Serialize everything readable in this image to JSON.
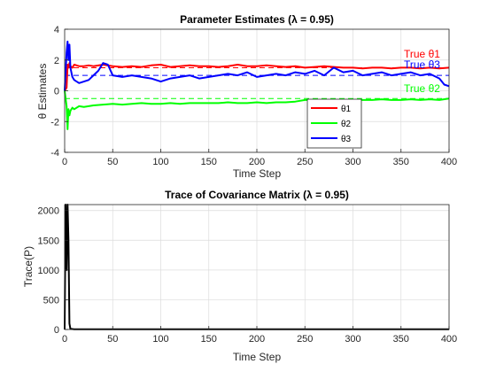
{
  "chart_data": [
    {
      "type": "line",
      "title": "Parameter Estimates (λ = 0.95)",
      "xlabel": "Time Step",
      "ylabel": "θ Estimates",
      "xlim": [
        0,
        400
      ],
      "ylim": [
        -4,
        4
      ],
      "xticks": [
        0,
        50,
        100,
        150,
        200,
        250,
        300,
        350,
        400
      ],
      "yticks": [
        -4,
        -2,
        0,
        2,
        4
      ],
      "grid": true,
      "legend_position": "lower-right",
      "series": [
        {
          "name": "θ1",
          "color": "#ff0000",
          "x": [
            0,
            2,
            3,
            4,
            5,
            6,
            8,
            10,
            15,
            20,
            25,
            30,
            40,
            50,
            60,
            70,
            80,
            90,
            100,
            110,
            120,
            130,
            140,
            150,
            160,
            170,
            180,
            190,
            200,
            210,
            220,
            230,
            240,
            250,
            260,
            270,
            280,
            290,
            300,
            310,
            320,
            330,
            340,
            350,
            360,
            370,
            380,
            390,
            400
          ],
          "values": [
            0.0,
            0.2,
            1.7,
            1.5,
            1.8,
            1.6,
            1.5,
            1.7,
            1.6,
            1.6,
            1.65,
            1.6,
            1.7,
            1.6,
            1.55,
            1.6,
            1.55,
            1.65,
            1.7,
            1.55,
            1.6,
            1.65,
            1.6,
            1.6,
            1.55,
            1.6,
            1.7,
            1.6,
            1.6,
            1.65,
            1.6,
            1.55,
            1.6,
            1.5,
            1.55,
            1.6,
            1.55,
            1.5,
            1.5,
            1.45,
            1.5,
            1.5,
            1.45,
            1.5,
            1.5,
            1.45,
            1.5,
            1.45,
            1.5
          ]
        },
        {
          "name": "θ2",
          "color": "#00ff00",
          "x": [
            0,
            2,
            3,
            4,
            5,
            6,
            8,
            10,
            15,
            20,
            25,
            30,
            40,
            50,
            60,
            70,
            80,
            90,
            100,
            110,
            120,
            130,
            140,
            150,
            160,
            170,
            180,
            190,
            200,
            210,
            220,
            230,
            240,
            250,
            260,
            270,
            280,
            290,
            300,
            310,
            320,
            330,
            340,
            350,
            360,
            370,
            380,
            390,
            400
          ],
          "values": [
            0.0,
            -1.0,
            -2.5,
            -1.2,
            -1.6,
            -1.3,
            -1.1,
            -1.2,
            -1.0,
            -1.05,
            -1.0,
            -0.95,
            -0.9,
            -0.85,
            -0.9,
            -0.85,
            -0.8,
            -0.85,
            -0.85,
            -0.8,
            -0.85,
            -0.8,
            -0.8,
            -0.8,
            -0.8,
            -0.75,
            -0.8,
            -0.8,
            -0.75,
            -0.8,
            -0.75,
            -0.75,
            -0.7,
            -0.6,
            -0.6,
            -0.65,
            -0.6,
            -0.65,
            -0.6,
            -0.6,
            -0.6,
            -0.55,
            -0.6,
            -0.6,
            -0.55,
            -0.6,
            -0.55,
            -0.6,
            -0.5
          ]
        },
        {
          "name": "θ3",
          "color": "#0000ff",
          "x": [
            0,
            2,
            3,
            4,
            5,
            6,
            8,
            10,
            15,
            20,
            25,
            30,
            35,
            40,
            45,
            50,
            60,
            70,
            80,
            90,
            100,
            110,
            120,
            130,
            140,
            150,
            160,
            170,
            180,
            190,
            200,
            210,
            220,
            230,
            240,
            250,
            260,
            270,
            280,
            290,
            300,
            310,
            320,
            330,
            340,
            350,
            360,
            370,
            380,
            390,
            395,
            400
          ],
          "values": [
            0.0,
            2.5,
            3.2,
            2.0,
            3.0,
            1.5,
            0.9,
            0.7,
            0.5,
            0.6,
            0.7,
            1.0,
            1.3,
            1.8,
            1.7,
            1.0,
            0.9,
            1.0,
            0.9,
            0.8,
            0.6,
            0.8,
            0.9,
            1.0,
            0.8,
            0.9,
            1.0,
            1.1,
            1.0,
            1.2,
            0.9,
            1.0,
            1.1,
            1.0,
            1.2,
            1.1,
            1.3,
            1.0,
            1.5,
            1.2,
            1.3,
            1.0,
            1.1,
            1.2,
            1.0,
            1.1,
            1.2,
            1.0,
            1.1,
            0.8,
            0.4,
            0.3
          ]
        }
      ],
      "reference_lines": [
        {
          "label": "True θ1",
          "value": 1.5,
          "color": "#ff0000"
        },
        {
          "label": "True θ2",
          "value": -0.5,
          "color": "#00ff00"
        },
        {
          "label": "True θ3",
          "value": 1.0,
          "color": "#0000ff"
        }
      ]
    },
    {
      "type": "line",
      "title": "Trace of Covariance Matrix (λ = 0.95)",
      "xlabel": "Time Step",
      "ylabel": "Trace(P)",
      "xlim": [
        0,
        400
      ],
      "ylim": [
        0,
        2100
      ],
      "xticks": [
        0,
        50,
        100,
        150,
        200,
        250,
        300,
        350,
        400
      ],
      "yticks": [
        0,
        500,
        1000,
        1500,
        2000
      ],
      "grid": true,
      "series": [
        {
          "name": "",
          "color": "#000000",
          "x": [
            0,
            1,
            2,
            3,
            4,
            5,
            6,
            10,
            50,
            100,
            200,
            300,
            400
          ],
          "values": [
            0,
            2100,
            1000,
            2100,
            1500,
            100,
            10,
            5,
            3,
            3,
            3,
            3,
            3
          ]
        }
      ]
    }
  ]
}
